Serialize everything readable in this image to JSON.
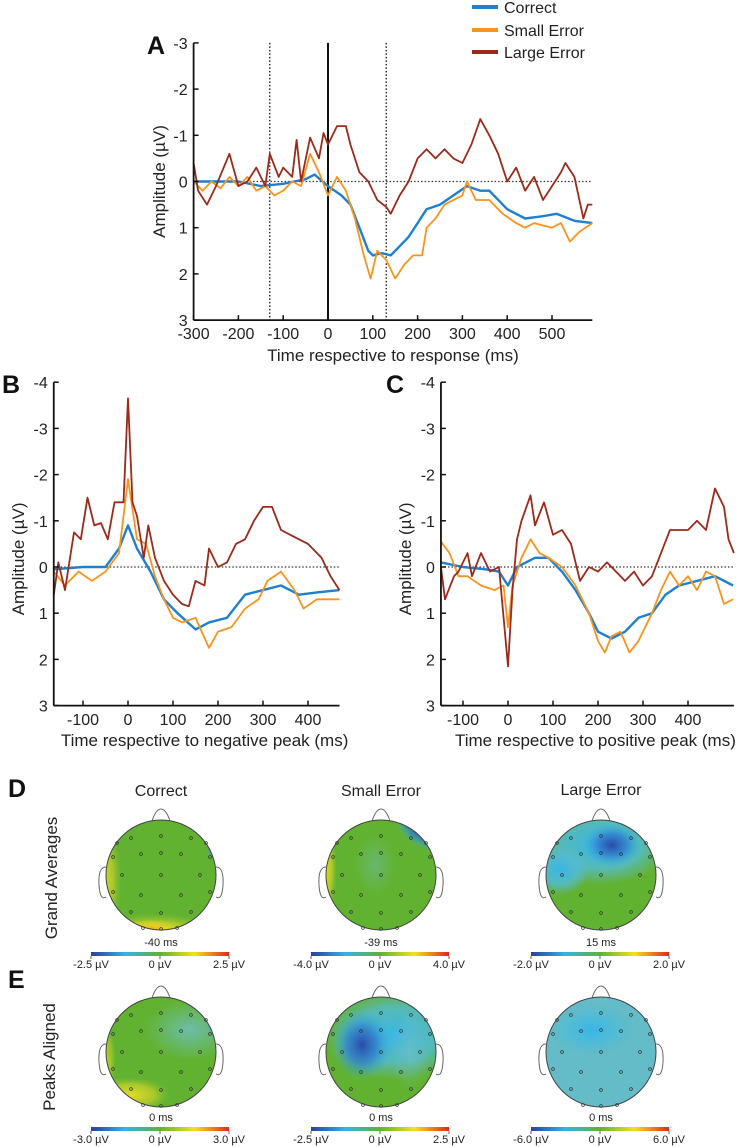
{
  "colors": {
    "correct": "#1f7fd0",
    "small_error": "#f7941d",
    "large_error": "#9c2a1a"
  },
  "legend": [
    {
      "name": "Correct",
      "color": "#1f7fd0"
    },
    {
      "name": "Small Error",
      "color": "#f7941d"
    },
    {
      "name": "Large Error",
      "color": "#9c2a1a"
    }
  ],
  "chart_data": [
    {
      "panel": "A",
      "type": "line",
      "xlabel": "Time respective to response (ms)",
      "ylabel": "Amplitude (µV)",
      "xlim": [
        -300,
        590
      ],
      "ylim": [
        -3,
        3
      ],
      "y_inverted": true,
      "xticks": [
        -300,
        -200,
        -100,
        0,
        100,
        200,
        300,
        400,
        500
      ],
      "yticks": [
        -3,
        -2,
        -1,
        0,
        1,
        2,
        3
      ],
      "vlines": [
        {
          "x": -130,
          "style": "dotted"
        },
        {
          "x": 0,
          "style": "solid"
        },
        {
          "x": 130,
          "style": "dotted"
        }
      ],
      "zero_line": "dotted",
      "series": [
        {
          "name": "Correct",
          "x": [
            -300,
            -250,
            -200,
            -150,
            -100,
            -50,
            -30,
            0,
            30,
            50,
            70,
            90,
            100,
            120,
            140,
            160,
            180,
            200,
            220,
            250,
            280,
            310,
            340,
            360,
            400,
            440,
            480,
            510,
            550,
            590
          ],
          "values": [
            0,
            0,
            0,
            0.1,
            0.05,
            -0.05,
            -0.15,
            0.1,
            0.3,
            0.5,
            1.0,
            1.5,
            1.6,
            1.55,
            1.6,
            1.4,
            1.2,
            0.9,
            0.6,
            0.5,
            0.3,
            0.1,
            0.2,
            0.2,
            0.6,
            0.8,
            0.75,
            0.7,
            0.85,
            0.9
          ]
        },
        {
          "name": "Small Error",
          "x": [
            -300,
            -280,
            -260,
            -240,
            -220,
            -200,
            -180,
            -160,
            -140,
            -120,
            -100,
            -80,
            -60,
            -40,
            -20,
            0,
            20,
            40,
            60,
            80,
            95,
            110,
            130,
            150,
            170,
            190,
            210,
            220,
            240,
            260,
            300,
            310,
            330,
            360,
            390,
            420,
            440,
            460,
            500,
            520,
            540,
            560,
            590
          ],
          "values": [
            0,
            0.2,
            0,
            0.15,
            -0.1,
            0.1,
            -0.1,
            0.2,
            0.1,
            0.3,
            0.2,
            0,
            0.1,
            -0.6,
            -0.2,
            0.3,
            -0.1,
            0.2,
            0.8,
            1.6,
            2.1,
            1.5,
            1.7,
            2.1,
            1.8,
            1.6,
            1.6,
            1.0,
            0.8,
            0.5,
            0.3,
            0,
            0.4,
            0.4,
            0.7,
            0.9,
            1.0,
            0.9,
            1.0,
            0.9,
            1.3,
            1.1,
            0.9
          ]
        },
        {
          "name": "Large Error",
          "x": [
            -300,
            -290,
            -270,
            -250,
            -220,
            -200,
            -180,
            -160,
            -140,
            -130,
            -110,
            -100,
            -80,
            -70,
            -60,
            -40,
            -20,
            -10,
            0,
            20,
            40,
            50,
            70,
            90,
            110,
            130,
            140,
            160,
            180,
            200,
            220,
            240,
            260,
            280,
            300,
            320,
            340,
            360,
            380,
            400,
            420,
            440,
            460,
            480,
            500,
            520,
            530,
            550,
            570,
            580,
            590
          ],
          "values": [
            -0.4,
            0.2,
            0.5,
            0.1,
            -0.6,
            0.1,
            0,
            -0.3,
            0.1,
            -0.6,
            -0.1,
            -0.3,
            -0.1,
            -0.9,
            0,
            -0.95,
            -0.5,
            -1.05,
            -0.8,
            -1.2,
            -1.2,
            -0.8,
            -0.2,
            0,
            0.4,
            0.55,
            0.7,
            0.3,
            0,
            -0.5,
            -0.7,
            -0.5,
            -0.7,
            -0.5,
            -0.4,
            -0.8,
            -1.35,
            -1.0,
            -0.6,
            0,
            -0.3,
            0.2,
            -0.1,
            0.4,
            0.1,
            -0.2,
            -0.4,
            -0.1,
            0.8,
            0.5,
            0.5
          ]
        }
      ]
    },
    {
      "panel": "B",
      "type": "line",
      "xlabel": "Time respective to negative peak (ms)",
      "ylabel": "Amplitude (µV)",
      "xlim": [
        -165,
        470
      ],
      "ylim": [
        -4,
        3
      ],
      "y_inverted": true,
      "xticks": [
        -100,
        0,
        100,
        200,
        300,
        400
      ],
      "yticks": [
        -4,
        -3,
        -2,
        -1,
        0,
        1,
        2,
        3
      ],
      "zero_line": "dotted",
      "series": [
        {
          "name": "Correct",
          "x": [
            -165,
            -100,
            -50,
            -20,
            0,
            20,
            50,
            80,
            110,
            150,
            180,
            220,
            260,
            300,
            340,
            380,
            420,
            470
          ],
          "values": [
            0.05,
            0,
            0,
            -0.4,
            -0.9,
            -0.4,
            0.1,
            0.7,
            1.0,
            1.35,
            1.2,
            1.1,
            0.6,
            0.5,
            0.4,
            0.6,
            0.55,
            0.5
          ]
        },
        {
          "name": "Small Error",
          "x": [
            -165,
            -140,
            -110,
            -80,
            -50,
            -20,
            0,
            20,
            40,
            60,
            80,
            100,
            120,
            150,
            180,
            200,
            230,
            260,
            290,
            310,
            340,
            370,
            390,
            420,
            450,
            470
          ],
          "values": [
            0.1,
            0.4,
            0.1,
            0.3,
            0.1,
            -0.3,
            -1.9,
            -0.6,
            -0.5,
            0.2,
            0.7,
            1.1,
            1.2,
            1.1,
            1.75,
            1.4,
            1.3,
            0.9,
            0.7,
            0.3,
            0.1,
            0.5,
            0.9,
            0.7,
            0.7,
            0.7
          ]
        },
        {
          "name": "Large Error",
          "x": [
            -165,
            -155,
            -140,
            -120,
            -105,
            -90,
            -75,
            -60,
            -45,
            -30,
            -10,
            0,
            10,
            20,
            35,
            45,
            60,
            80,
            100,
            120,
            135,
            150,
            170,
            180,
            200,
            220,
            240,
            260,
            280,
            300,
            320,
            340,
            360,
            380,
            400,
            430,
            450,
            470
          ],
          "values": [
            0.6,
            -0.1,
            0.5,
            -0.75,
            -0.6,
            -1.5,
            -0.9,
            -0.95,
            -0.6,
            -1.4,
            -1.4,
            -3.65,
            -1.4,
            -1.1,
            -0.2,
            -0.9,
            -0.2,
            0.3,
            0.6,
            0.8,
            0.85,
            0.3,
            0.4,
            -0.4,
            0,
            -0.1,
            -0.5,
            -0.6,
            -1.0,
            -1.3,
            -1.3,
            -0.8,
            -0.7,
            -0.6,
            -0.5,
            -0.2,
            0.2,
            0.5
          ]
        }
      ]
    },
    {
      "panel": "C",
      "type": "line",
      "xlabel": "Time respective to positive peak (ms)",
      "ylabel": "Amplitude (µV)",
      "xlim": [
        -149,
        502
      ],
      "ylim": [
        -4,
        3
      ],
      "y_inverted": true,
      "xticks": [
        -100,
        0,
        100,
        200,
        300,
        400
      ],
      "yticks": [
        -4,
        -3,
        -2,
        -1,
        0,
        1,
        2,
        3
      ],
      "zero_line": "dotted",
      "series": [
        {
          "name": "Correct",
          "x": [
            -149,
            -100,
            -50,
            -20,
            0,
            20,
            40,
            60,
            90,
            120,
            150,
            180,
            200,
            230,
            260,
            290,
            320,
            350,
            380,
            420,
            460,
            500
          ],
          "values": [
            -0.1,
            0,
            0.05,
            0.1,
            0.4,
            0,
            -0.1,
            -0.2,
            -0.2,
            0.1,
            0.5,
            1.0,
            1.4,
            1.55,
            1.4,
            1.1,
            1.0,
            0.6,
            0.4,
            0.3,
            0.2,
            0.4
          ]
        },
        {
          "name": "Small Error",
          "x": [
            -149,
            -130,
            -110,
            -90,
            -60,
            -30,
            -10,
            0,
            10,
            30,
            50,
            70,
            90,
            120,
            150,
            180,
            200,
            215,
            230,
            250,
            270,
            290,
            320,
            340,
            360,
            380,
            400,
            420,
            440,
            460,
            480,
            500
          ],
          "values": [
            -0.55,
            -0.3,
            0.2,
            0.2,
            0.4,
            0.5,
            0.4,
            1.3,
            0.4,
            -0.2,
            -0.6,
            -0.3,
            -0.2,
            0,
            0.4,
            1.0,
            1.6,
            1.85,
            1.5,
            1.4,
            1.85,
            1.6,
            1.0,
            0.5,
            0.1,
            0.4,
            0.2,
            0.5,
            0.1,
            0.2,
            0.8,
            0.7
          ]
        },
        {
          "name": "Large Error",
          "x": [
            -149,
            -140,
            -120,
            -110,
            -90,
            -80,
            -60,
            -40,
            -20,
            0,
            10,
            20,
            30,
            50,
            60,
            80,
            100,
            120,
            140,
            160,
            180,
            200,
            220,
            240,
            260,
            280,
            300,
            320,
            340,
            360,
            380,
            400,
            420,
            440,
            460,
            480,
            490,
            502
          ],
          "values": [
            0,
            0.7,
            0.2,
            0.1,
            -0.3,
            0.2,
            -0.3,
            0.1,
            0,
            2.15,
            0.5,
            -0.6,
            -1.0,
            -1.55,
            -0.9,
            -1.4,
            -0.7,
            -0.8,
            -0.5,
            0.3,
            0,
            0.1,
            -0.1,
            0.1,
            0.3,
            0.1,
            0.4,
            0.2,
            -0.3,
            -0.8,
            -0.8,
            -0.8,
            -1.0,
            -0.8,
            -1.7,
            -1.3,
            -0.6,
            -0.3
          ]
        }
      ]
    }
  ],
  "panels": {
    "A": "A",
    "B": "B",
    "C": "C",
    "D": "D",
    "E": "E"
  },
  "topomaps": {
    "row_labels": [
      "Grand Averages",
      "Peaks Aligned"
    ],
    "column_titles": [
      "Correct",
      "Small Error",
      "Large Error"
    ],
    "D": [
      {
        "condition": "Correct",
        "time": "-40 ms",
        "cbar": [
          "-2.5 µV",
          "0 µV",
          "2.5 µV"
        ]
      },
      {
        "condition": "Small Error",
        "time": "-39 ms",
        "cbar": [
          "-4.0 µV",
          "0 µV",
          "4.0 µV"
        ]
      },
      {
        "condition": "Large Error",
        "time": "15 ms",
        "cbar": [
          "-2.0 µV",
          "0 µV",
          "2.0 µV"
        ]
      }
    ],
    "E": [
      {
        "condition": "Correct",
        "time": "0 ms",
        "cbar": [
          "-3.0 µV",
          "0 µV",
          "3.0 µV"
        ]
      },
      {
        "condition": "Small Error",
        "time": "0 ms",
        "cbar": [
          "-2.5 µV",
          "0 µV",
          "2.5 µV"
        ]
      },
      {
        "condition": "Large Error",
        "time": "0 ms",
        "cbar": [
          "-6.0 µV",
          "0 µV",
          "6.0 µV"
        ]
      }
    ]
  }
}
